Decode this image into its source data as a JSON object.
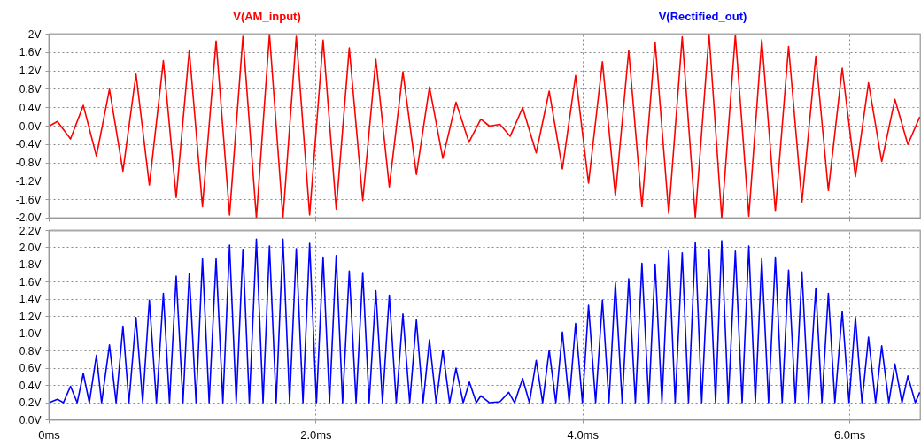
{
  "chart_data": [
    {
      "type": "line",
      "legend": "top",
      "grid": true,
      "tick_labels": "y",
      "xlim": [
        0,
        6.53
      ],
      "xticks": [
        {
          "value": 0,
          "label": null
        },
        {
          "value": 2,
          "label": null
        },
        {
          "value": 4,
          "label": null
        },
        {
          "value": 6,
          "label": null
        }
      ],
      "ylim": [
        -2,
        2
      ],
      "yticks": [
        {
          "value": -2,
          "label": "-2.0V"
        },
        {
          "value": -1.6,
          "label": "-1.6V"
        },
        {
          "value": -1.2,
          "label": "-1.2V"
        },
        {
          "value": -0.8,
          "label": "-0.8V"
        },
        {
          "value": -0.4,
          "label": "-0.4V"
        },
        {
          "value": 0,
          "label": "0.0V"
        },
        {
          "value": 0.4,
          "label": "0.4V"
        },
        {
          "value": 0.8,
          "label": "0.8V"
        },
        {
          "value": 1.2,
          "label": "1.2V"
        },
        {
          "value": 1.6,
          "label": "1.6V"
        },
        {
          "value": 2,
          "label": "2V"
        }
      ],
      "series": [
        {
          "name": "V(AM_input)",
          "color": "#ff0000",
          "x": [
            0,
            0.062,
            0.16,
            0.256,
            0.354,
            0.452,
            0.553,
            0.651,
            0.751,
            0.856,
            0.952,
            1.05,
            1.149,
            1.251,
            1.352,
            1.452,
            1.553,
            1.651,
            1.752,
            1.852,
            1.952,
            2.053,
            2.151,
            2.249,
            2.35,
            2.448,
            2.549,
            2.651,
            2.752,
            2.85,
            2.95,
            3.049,
            3.146,
            3.235,
            3.3,
            3.378,
            3.455,
            3.548,
            3.65,
            3.747,
            3.846,
            3.945,
            4.042,
            4.146,
            4.243,
            4.343,
            4.442,
            4.541,
            4.643,
            4.744,
            4.842,
            4.945,
            5.04,
            5.142,
            5.243,
            5.34,
            5.442,
            5.541,
            5.641,
            5.745,
            5.839,
            5.943,
            6.042,
            6.14,
            6.239,
            6.338,
            6.435,
            6.524
          ],
          "values": [
            0,
            0.1,
            -0.28,
            0.45,
            -0.65,
            0.8,
            -0.98,
            1.13,
            -1.28,
            1.42,
            -1.55,
            1.65,
            -1.75,
            1.85,
            -1.93,
            1.95,
            -2.0,
            2.0,
            -2.0,
            1.95,
            -1.93,
            1.87,
            -1.8,
            1.7,
            -1.62,
            1.45,
            -1.32,
            1.18,
            -1.05,
            0.85,
            -0.7,
            0.52,
            -0.35,
            0.15,
            0.0,
            0.04,
            -0.22,
            0.4,
            -0.58,
            0.76,
            -0.93,
            1.1,
            -1.24,
            1.4,
            -1.52,
            1.64,
            -1.75,
            1.82,
            -1.9,
            1.94,
            -1.98,
            2.0,
            -2.0,
            1.98,
            -1.96,
            1.88,
            -1.85,
            1.73,
            -1.65,
            1.52,
            -1.4,
            1.26,
            -1.1,
            0.94,
            -0.77,
            0.58,
            -0.4,
            0.2
          ]
        }
      ]
    },
    {
      "type": "line",
      "legend": "top",
      "grid": true,
      "xlim": [
        0,
        6.53
      ],
      "xticks": [
        {
          "value": 0,
          "label": "0ms"
        },
        {
          "value": 2,
          "label": "2.0ms"
        },
        {
          "value": 4,
          "label": "4.0ms"
        },
        {
          "value": 6,
          "label": "6.0ms"
        }
      ],
      "ylim": [
        0,
        2.2
      ],
      "yticks": [
        {
          "value": 0,
          "label": "0.0V"
        },
        {
          "value": 0.2,
          "label": "0.2V"
        },
        {
          "value": 0.4,
          "label": "0.4V"
        },
        {
          "value": 0.6,
          "label": "0.6V"
        },
        {
          "value": 0.8,
          "label": "0.8V"
        },
        {
          "value": 1.0,
          "label": "1.0V"
        },
        {
          "value": 1.2,
          "label": "1.2V"
        },
        {
          "value": 1.4,
          "label": "1.4V"
        },
        {
          "value": 1.6,
          "label": "1.6V"
        },
        {
          "value": 1.8,
          "label": "1.8V"
        },
        {
          "value": 2.0,
          "label": "2.0V"
        },
        {
          "value": 2.2,
          "label": "2.2V"
        }
      ],
      "series": [
        {
          "name": "V(Rectified_out)",
          "color": "#0000ff",
          "x": [
            0,
            0.062,
            0.107,
            0.16,
            0.21,
            0.256,
            0.301,
            0.354,
            0.393,
            0.452,
            0.502,
            0.553,
            0.598,
            0.651,
            0.701,
            0.751,
            0.804,
            0.856,
            0.902,
            0.952,
            1.003,
            1.05,
            1.101,
            1.149,
            1.199,
            1.251,
            1.302,
            1.352,
            1.402,
            1.452,
            1.5,
            1.553,
            1.603,
            1.651,
            1.701,
            1.752,
            1.802,
            1.852,
            1.902,
            1.952,
            2.003,
            2.053,
            2.101,
            2.151,
            2.199,
            2.249,
            2.3,
            2.35,
            2.398,
            2.448,
            2.498,
            2.549,
            2.601,
            2.651,
            2.702,
            2.752,
            2.802,
            2.85,
            2.9,
            2.95,
            3.001,
            3.049,
            3.103,
            3.149,
            3.201,
            3.235,
            3.3,
            3.378,
            3.444,
            3.488,
            3.548,
            3.599,
            3.65,
            3.698,
            3.747,
            3.797,
            3.846,
            3.897,
            3.945,
            3.996,
            4.042,
            4.095,
            4.146,
            4.195,
            4.243,
            4.294,
            4.343,
            4.393,
            4.442,
            4.493,
            4.541,
            4.592,
            4.643,
            4.691,
            4.744,
            4.791,
            4.842,
            4.89,
            4.945,
            4.994,
            5.04,
            5.089,
            5.142,
            5.193,
            5.243,
            5.292,
            5.34,
            5.391,
            5.442,
            5.493,
            5.541,
            5.592,
            5.641,
            5.691,
            5.745,
            5.791,
            5.839,
            5.888,
            5.943,
            5.994,
            6.042,
            6.091,
            6.14,
            6.193,
            6.239,
            6.292,
            6.338,
            6.391,
            6.435,
            6.491,
            6.524
          ],
          "values": [
            0.2,
            0.24,
            0.2,
            0.39,
            0.2,
            0.54,
            0.2,
            0.75,
            0.2,
            0.87,
            0.2,
            1.09,
            0.2,
            1.19,
            0.2,
            1.39,
            0.2,
            1.47,
            0.2,
            1.67,
            0.2,
            1.7,
            0.2,
            1.87,
            0.2,
            1.87,
            0.2,
            2.03,
            0.2,
            1.98,
            0.2,
            2.1,
            0.2,
            2.02,
            0.2,
            2.1,
            0.2,
            1.99,
            0.2,
            2.05,
            0.2,
            1.89,
            0.2,
            1.91,
            0.2,
            1.73,
            0.2,
            1.71,
            0.2,
            1.5,
            0.2,
            1.45,
            0.2,
            1.23,
            0.2,
            1.16,
            0.2,
            0.93,
            0.2,
            0.81,
            0.2,
            0.6,
            0.2,
            0.44,
            0.2,
            0.28,
            0.2,
            0.21,
            0.32,
            0.2,
            0.48,
            0.2,
            0.69,
            0.2,
            0.81,
            0.2,
            1.02,
            0.2,
            1.12,
            0.2,
            1.33,
            0.2,
            1.39,
            0.2,
            1.59,
            0.2,
            1.64,
            0.2,
            1.82,
            0.2,
            1.81,
            0.2,
            1.97,
            0.2,
            1.94,
            0.2,
            2.06,
            0.2,
            1.98,
            0.2,
            2.08,
            0.2,
            1.96,
            0.2,
            2.02,
            0.2,
            1.87,
            0.2,
            1.89,
            0.2,
            1.74,
            0.2,
            1.72,
            0.2,
            1.53,
            0.2,
            1.47,
            0.2,
            1.26,
            0.2,
            1.19,
            0.2,
            0.96,
            0.2,
            0.86,
            0.2,
            0.65,
            0.2,
            0.51,
            0.2,
            0.32
          ]
        }
      ]
    }
  ]
}
